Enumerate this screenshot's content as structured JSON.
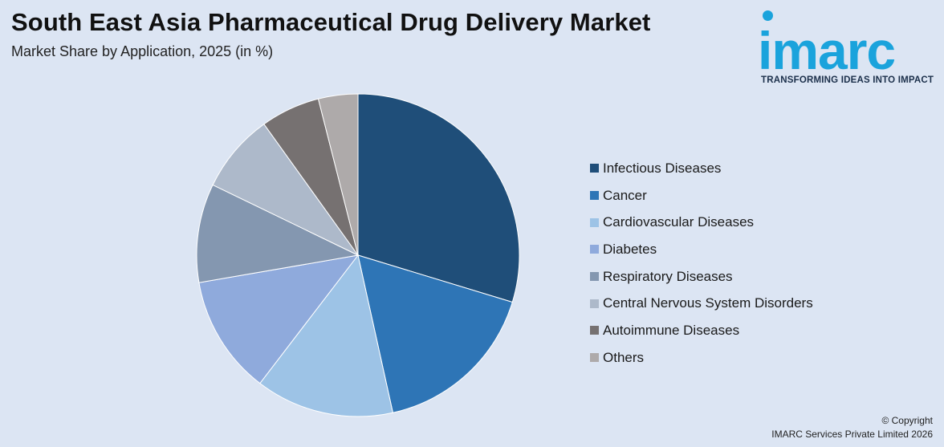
{
  "header": {
    "title": "South East Asia Pharmaceutical Drug Delivery Market",
    "subtitle": "Market Share by Application, 2025 (in %)"
  },
  "logo": {
    "word": "imarc",
    "tagline": "TRANSFORMING IDEAS INTO IMPACT",
    "color": "#1aa3dc"
  },
  "chart_data": {
    "type": "pie",
    "title": "South East Asia Pharmaceutical Drug Delivery Market",
    "subtitle": "Market Share by Application, 2025 (in %)",
    "start_angle_deg": 0,
    "direction": "clockwise",
    "legend_position": "right",
    "slices": [
      {
        "label": "Infectious Diseases",
        "value": 30,
        "color": "#1f4e79"
      },
      {
        "label": "Cancer",
        "value": 17,
        "color": "#2e75b6"
      },
      {
        "label": "Cardiovascular Diseases",
        "value": 14,
        "color": "#9dc3e6"
      },
      {
        "label": "Diabetes",
        "value": 12,
        "color": "#8faadc"
      },
      {
        "label": "Respiratory Diseases",
        "value": 10,
        "color": "#8497b0"
      },
      {
        "label": "Central Nervous System Disorders",
        "value": 8,
        "color": "#adb9ca"
      },
      {
        "label": "Autoimmune Diseases",
        "value": 6,
        "color": "#767171"
      },
      {
        "label": "Others",
        "value": 4,
        "color": "#aeaaaa"
      }
    ]
  },
  "footer": {
    "copyright_line1": "© Copyright",
    "copyright_line2": "IMARC Services Private Limited 2026"
  }
}
